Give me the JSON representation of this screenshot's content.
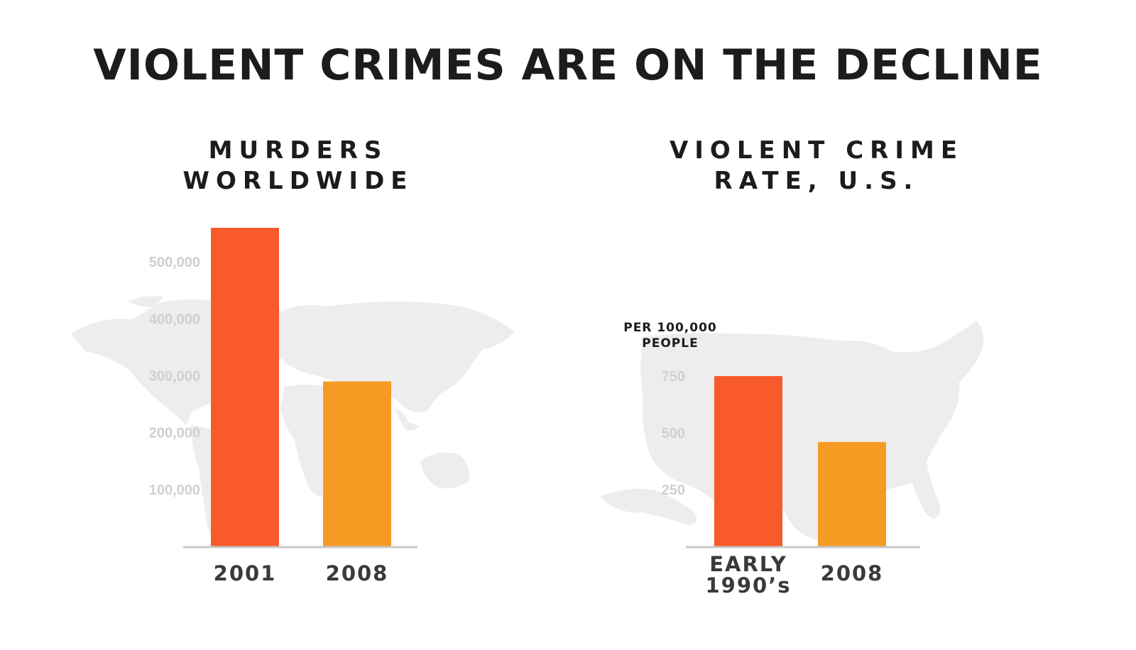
{
  "title": "VIOLENT CRIMES ARE ON THE DECLINE",
  "colors": {
    "bar_first": "#f85a2b",
    "bar_second": "#f59b24",
    "map": "#ededed",
    "axis": "#c8c8c8",
    "tick_text": "#d0d0d0"
  },
  "chart_data": [
    {
      "type": "bar",
      "title_lines": [
        "MURDERS",
        "WORLDWIDE"
      ],
      "background_map": "world-map",
      "categories": [
        [
          "2001"
        ],
        [
          "2008"
        ]
      ],
      "values": [
        560000,
        290000
      ],
      "yticks": [
        "100,000",
        "200,000",
        "300,000",
        "400,000",
        "500,000"
      ],
      "ytick_values": [
        100000,
        200000,
        300000,
        400000,
        500000
      ],
      "ylim": [
        0,
        560000
      ],
      "grid": false,
      "unit_label": []
    },
    {
      "type": "bar",
      "title_lines": [
        "VIOLENT CRIME",
        "RATE, U.S."
      ],
      "background_map": "us-map",
      "categories": [
        [
          "EARLY",
          "1990’s"
        ],
        [
          "2008"
        ]
      ],
      "values": [
        750,
        460
      ],
      "yticks": [
        "250",
        "500",
        "750"
      ],
      "ytick_values": [
        250,
        500,
        750
      ],
      "ylim": [
        0,
        750
      ],
      "grid": false,
      "unit_label": [
        "PER 100,000",
        "PEOPLE"
      ]
    }
  ]
}
